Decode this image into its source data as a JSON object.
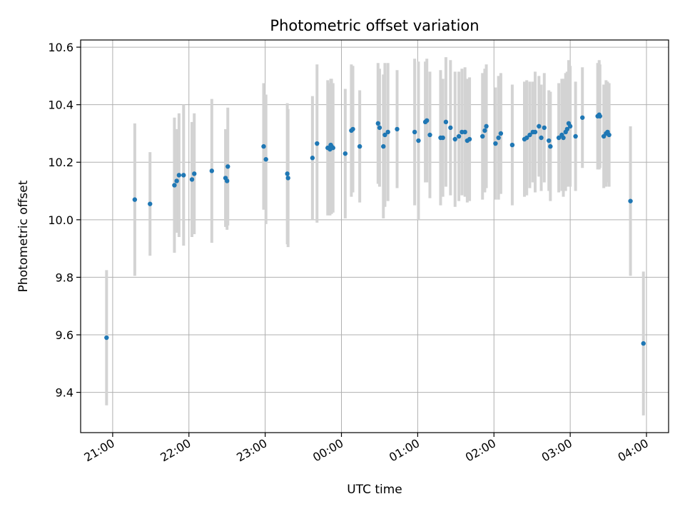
{
  "chart_data": {
    "type": "scatter",
    "title": "Photometric offset variation",
    "xlabel": "UTC time",
    "ylabel": "Photometric offset",
    "x_ticks": [
      "21:00",
      "22:00",
      "23:00",
      "00:00",
      "01:00",
      "02:00",
      "03:00",
      "04:00"
    ],
    "x_tick_hours": [
      21,
      22,
      23,
      24,
      25,
      26,
      27,
      28
    ],
    "y_ticks": [
      "9.4",
      "9.6",
      "9.8",
      "10.0",
      "10.2",
      "10.4",
      "10.6"
    ],
    "y_tick_values": [
      9.4,
      9.6,
      9.8,
      10.0,
      10.2,
      10.4,
      10.6
    ],
    "xlim": [
      "20:35",
      "04:17"
    ],
    "xlim_hours": [
      20.58,
      28.29
    ],
    "ylim": [
      9.26,
      10.625
    ],
    "grid": true,
    "colors": {
      "point": "#1f77b4",
      "errorbar": "#d3d3d3",
      "grid": "#b0b0b0"
    },
    "series": [
      {
        "x_hours": [
          20.92,
          21.29,
          21.49,
          21.81,
          21.84,
          21.87,
          21.93,
          22.04,
          22.07,
          22.3,
          22.48,
          22.5,
          22.51,
          22.98,
          23.01,
          23.29,
          23.3,
          23.62,
          23.68,
          23.82,
          23.85,
          23.86,
          23.87,
          23.89,
          24.05,
          24.13,
          24.15,
          24.24,
          24.48,
          24.5,
          24.55,
          24.57,
          24.61,
          24.73,
          24.96,
          25.01,
          25.1,
          25.12,
          25.16,
          25.3,
          25.33,
          25.37,
          25.43,
          25.49,
          25.54,
          25.58,
          25.62,
          25.65,
          25.68,
          25.85,
          25.88,
          25.9,
          26.02,
          26.06,
          26.09,
          26.24,
          26.4,
          26.43,
          26.47,
          26.51,
          26.54,
          26.59,
          26.62,
          26.66,
          26.72,
          26.74,
          26.85,
          26.89,
          26.91,
          26.94,
          26.96,
          26.98,
          27.0,
          27.07,
          27.16,
          27.36,
          27.38,
          27.39,
          27.44,
          27.47,
          27.49,
          27.51,
          27.79,
          27.96
        ],
        "y": [
          9.59,
          10.07,
          10.055,
          10.12,
          10.135,
          10.155,
          10.155,
          10.14,
          10.16,
          10.17,
          10.145,
          10.135,
          10.185,
          10.255,
          10.21,
          10.16,
          10.145,
          10.215,
          10.265,
          10.25,
          10.245,
          10.26,
          10.255,
          10.25,
          10.23,
          10.31,
          10.315,
          10.255,
          10.335,
          10.32,
          10.255,
          10.295,
          10.305,
          10.315,
          10.305,
          10.275,
          10.34,
          10.345,
          10.295,
          10.285,
          10.285,
          10.34,
          10.32,
          10.28,
          10.29,
          10.305,
          10.305,
          10.275,
          10.28,
          10.29,
          10.31,
          10.325,
          10.265,
          10.285,
          10.3,
          10.26,
          10.28,
          10.285,
          10.295,
          10.305,
          10.305,
          10.325,
          10.285,
          10.32,
          10.275,
          10.255,
          10.285,
          10.295,
          10.285,
          10.305,
          10.315,
          10.335,
          10.325,
          10.29,
          10.355,
          10.36,
          10.365,
          10.36,
          10.29,
          10.3,
          10.305,
          10.295,
          10.065,
          9.57
        ],
        "error": [
          0.235,
          0.265,
          0.18,
          0.235,
          0.18,
          0.215,
          0.245,
          0.2,
          0.21,
          0.25,
          0.17,
          0.17,
          0.205,
          0.22,
          0.225,
          0.245,
          0.24,
          0.215,
          0.275,
          0.235,
          0.23,
          0.23,
          0.235,
          0.225,
          0.225,
          0.23,
          0.22,
          0.195,
          0.21,
          0.205,
          0.25,
          0.25,
          0.24,
          0.205,
          0.255,
          0.275,
          0.21,
          0.215,
          0.22,
          0.235,
          0.205,
          0.225,
          0.235,
          0.235,
          0.225,
          0.22,
          0.225,
          0.215,
          0.215,
          0.22,
          0.215,
          0.215,
          0.195,
          0.215,
          0.21,
          0.21,
          0.2,
          0.2,
          0.185,
          0.175,
          0.21,
          0.175,
          0.185,
          0.19,
          0.175,
          0.19,
          0.19,
          0.195,
          0.205,
          0.205,
          0.2,
          0.22,
          0.21,
          0.19,
          0.175,
          0.185,
          0.19,
          0.18,
          0.18,
          0.185,
          0.175,
          0.18,
          0.26,
          0.25
        ]
      }
    ]
  }
}
